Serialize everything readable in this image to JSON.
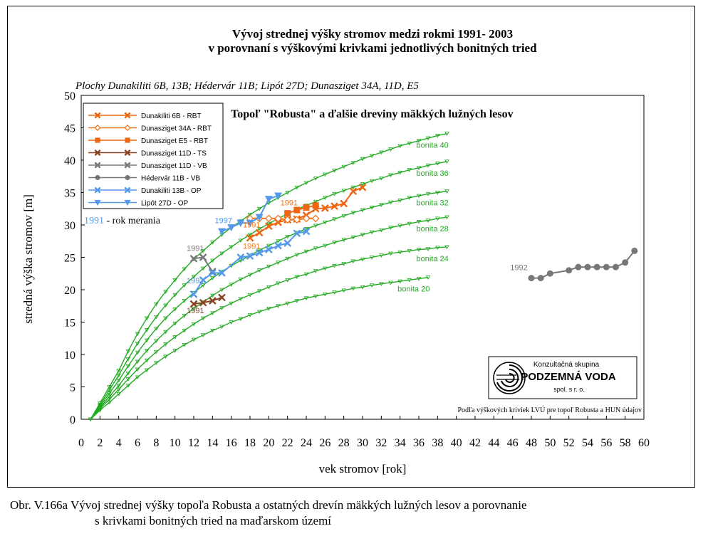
{
  "chart_data": {
    "type": "line",
    "title": "Vývoj strednej výšky stromov medzi rokmi 1991- 2003",
    "subtitle": "v porovnaní s výškovými krivkami jednotlivých bonitných tried",
    "plots_note": "Plochy Dunakiliti 6B, 13B; Hédervár 11B; Lipót 27D; Dunasziget 34A, 11D, E5",
    "panel_title": "Topoľ \"Robusta\" a ďalšie dreviny mäkkých lužných lesov",
    "xlabel": "vek stromov [rok]",
    "ylabel": "stredná výška stromov [m]",
    "xlim": [
      0,
      60
    ],
    "ylim": [
      0,
      50
    ],
    "x_ticks": [
      "0",
      "2",
      "4",
      "6",
      "8",
      "10",
      "12",
      "14",
      "16",
      "18",
      "20",
      "22",
      "24",
      "26",
      "28",
      "30",
      "32",
      "34",
      "36",
      "38",
      "40",
      "42",
      "44",
      "46",
      "48",
      "50",
      "52",
      "54",
      "56",
      "58",
      "60"
    ],
    "y_ticks": [
      "0",
      "5",
      "10",
      "15",
      "20",
      "25",
      "30",
      "35",
      "40",
      "45",
      "50"
    ],
    "grid": false,
    "legend_placement": "top-left",
    "bonita_curves": [
      {
        "label": "bonita 40",
        "color": "#22aa22",
        "x": [
          1,
          2,
          3,
          4,
          5,
          6,
          7,
          8,
          9,
          10,
          11,
          12,
          13,
          14,
          15,
          16,
          17,
          18,
          19,
          20,
          21,
          22,
          23,
          24,
          25,
          26,
          27,
          28,
          29,
          30,
          31,
          32,
          33,
          34,
          35,
          36,
          37,
          38,
          39
        ],
        "y": [
          0,
          2.5,
          5.0,
          7.5,
          10.5,
          13.2,
          15.6,
          17.8,
          19.7,
          21.5,
          23.2,
          24.7,
          26.0,
          27.3,
          28.5,
          29.6,
          30.6,
          31.6,
          32.5,
          33.4,
          34.2,
          35.0,
          35.8,
          36.5,
          37.2,
          37.8,
          38.4,
          39.0,
          39.6,
          40.2,
          40.7,
          41.2,
          41.7,
          42.2,
          42.6,
          43.0,
          43.4,
          43.8,
          44.1
        ]
      },
      {
        "label": "bonita 36",
        "color": "#22aa22",
        "x": [
          1,
          2,
          3,
          4,
          5,
          6,
          7,
          8,
          9,
          10,
          11,
          12,
          13,
          14,
          15,
          16,
          17,
          18,
          19,
          20,
          21,
          22,
          23,
          24,
          25,
          26,
          27,
          28,
          29,
          30,
          31,
          32,
          33,
          34,
          35,
          36,
          37,
          38,
          39
        ],
        "y": [
          0,
          2.2,
          4.5,
          6.8,
          9.3,
          11.7,
          13.8,
          15.8,
          17.6,
          19.2,
          20.7,
          22.0,
          23.3,
          24.5,
          25.6,
          26.6,
          27.6,
          28.5,
          29.4,
          30.2,
          31.0,
          31.7,
          32.4,
          33.0,
          33.6,
          34.2,
          34.8,
          35.3,
          35.8,
          36.3,
          36.8,
          37.2,
          37.7,
          38.1,
          38.5,
          38.8,
          39.2,
          39.5,
          39.8
        ]
      },
      {
        "label": "bonita 32",
        "color": "#22aa22",
        "x": [
          1,
          2,
          3,
          4,
          5,
          6,
          7,
          8,
          9,
          10,
          11,
          12,
          13,
          14,
          15,
          16,
          17,
          18,
          19,
          20,
          21,
          22,
          23,
          24,
          25,
          26,
          27,
          28,
          29,
          30,
          31,
          32,
          33,
          34,
          35,
          36,
          37,
          38,
          39
        ],
        "y": [
          0,
          2.0,
          4.0,
          6.0,
          8.2,
          10.3,
          12.2,
          14.0,
          15.6,
          17.0,
          18.3,
          19.5,
          20.7,
          21.8,
          22.8,
          23.7,
          24.5,
          25.3,
          26.1,
          26.8,
          27.5,
          28.2,
          28.8,
          29.4,
          29.9,
          30.4,
          30.9,
          31.4,
          31.9,
          32.3,
          32.7,
          33.1,
          33.5,
          33.8,
          34.2,
          34.5,
          34.8,
          35.0,
          35.2
        ]
      },
      {
        "label": "bonita 28",
        "color": "#22aa22",
        "x": [
          1,
          2,
          3,
          4,
          5,
          6,
          7,
          8,
          9,
          10,
          11,
          12,
          13,
          14,
          15,
          16,
          17,
          18,
          19,
          20,
          21,
          22,
          23,
          24,
          25,
          26,
          27,
          28,
          29,
          30,
          31,
          32,
          33,
          34,
          35,
          36,
          37,
          38,
          39
        ],
        "y": [
          0,
          1.8,
          3.5,
          5.2,
          7.1,
          8.9,
          10.6,
          12.1,
          13.5,
          14.8,
          16.0,
          17.1,
          18.1,
          19.1,
          20.0,
          20.8,
          21.6,
          22.3,
          23.0,
          23.6,
          24.2,
          24.8,
          25.4,
          25.9,
          26.4,
          26.8,
          27.3,
          27.7,
          28.1,
          28.5,
          28.9,
          29.2,
          29.6,
          29.9,
          30.2,
          30.5,
          30.7,
          31.0,
          31.2
        ]
      },
      {
        "label": "bonita 24",
        "color": "#22aa22",
        "x": [
          1,
          2,
          3,
          4,
          5,
          6,
          7,
          8,
          9,
          10,
          11,
          12,
          13,
          14,
          15,
          16,
          17,
          18,
          19,
          20,
          21,
          22,
          23,
          24,
          25,
          26,
          27,
          28,
          29,
          30,
          31,
          32,
          33,
          34,
          35,
          36,
          37,
          38,
          39
        ],
        "y": [
          0,
          1.6,
          3.1,
          4.6,
          6.2,
          7.7,
          9.1,
          10.4,
          11.6,
          12.7,
          13.7,
          14.7,
          15.6,
          16.4,
          17.2,
          17.9,
          18.6,
          19.2,
          19.8,
          20.4,
          21.0,
          21.5,
          22.0,
          22.4,
          22.9,
          23.3,
          23.7,
          24.0,
          24.4,
          24.7,
          25.0,
          25.3,
          25.6,
          25.8,
          26.0,
          26.2,
          26.3,
          26.5,
          26.6
        ]
      },
      {
        "label": "bonita 20",
        "color": "#22aa22",
        "x": [
          1,
          2,
          3,
          4,
          5,
          6,
          7,
          8,
          9,
          10,
          11,
          12,
          13,
          14,
          15,
          16,
          17,
          18,
          19,
          20,
          21,
          22,
          23,
          24,
          25,
          26,
          27,
          28,
          29,
          30,
          31,
          32,
          33,
          34,
          35,
          36,
          37
        ],
        "y": [
          0,
          1.4,
          2.6,
          3.9,
          5.2,
          6.5,
          7.6,
          8.7,
          9.7,
          10.6,
          11.5,
          12.3,
          13.0,
          13.7,
          14.3,
          15.0,
          15.5,
          16.1,
          16.6,
          17.1,
          17.5,
          17.9,
          18.3,
          18.7,
          19.0,
          19.3,
          19.6,
          19.9,
          20.2,
          20.4,
          20.7,
          20.9,
          21.1,
          21.3,
          21.5,
          21.7,
          21.9
        ]
      }
    ],
    "series": [
      {
        "name": "Dunakiliti 6B - RBT",
        "color": "#ee6611",
        "marker": "x",
        "x": [
          18,
          19,
          20,
          21,
          22,
          23,
          24,
          25,
          26,
          27,
          28,
          29,
          30
        ],
        "y": [
          28.0,
          28.8,
          29.8,
          30.4,
          30.8,
          30.9,
          31.5,
          32.5,
          32.6,
          32.9,
          33.3,
          35.2,
          35.8
        ]
      },
      {
        "name": "Dunasziget 34A - RBT",
        "color": "#ee7722",
        "marker": "diamond-open",
        "x": [
          18,
          19,
          20,
          21,
          22,
          23,
          24,
          25
        ],
        "y": [
          31.0,
          31.0,
          31.0,
          31.0,
          30.8,
          30.8,
          31.0,
          31.0
        ]
      },
      {
        "name": "Dunasziget E5 - RBT",
        "color": "#ee6611",
        "marker": "square",
        "x": [
          22,
          23,
          24,
          25
        ],
        "y": [
          31.8,
          32.3,
          32.7,
          33.0
        ]
      },
      {
        "name": "Dunasziget 11D - TS",
        "color": "#884422",
        "marker": "x",
        "x": [
          12,
          13,
          14,
          15
        ],
        "y": [
          17.8,
          18.0,
          18.3,
          18.8
        ]
      },
      {
        "name": "Dunasziget 11D - VB",
        "color": "#777777",
        "marker": "x",
        "x": [
          12,
          13,
          14
        ],
        "y": [
          24.8,
          25.0,
          22.8
        ]
      },
      {
        "name": "Hédervár 11B - VB",
        "color": "#777777",
        "marker": "circle",
        "x": [
          48,
          49,
          50,
          52,
          53,
          54,
          55,
          56,
          57,
          58,
          59
        ],
        "y": [
          21.8,
          21.8,
          22.5,
          23.0,
          23.5,
          23.5,
          23.5,
          23.5,
          23.5,
          24.2,
          26.0
        ]
      },
      {
        "name": "Dunakiliti 13B - OP",
        "color": "#5599ee",
        "marker": "x",
        "x": [
          12,
          13,
          14,
          15,
          17,
          18,
          19,
          20,
          21,
          22,
          23,
          24
        ],
        "y": [
          19.3,
          21.5,
          22.6,
          22.6,
          25.0,
          25.2,
          25.7,
          26.2,
          26.8,
          27.2,
          28.7,
          29.0
        ]
      },
      {
        "name": "Lipót 27D - OP",
        "color": "#5599ee",
        "marker": "triangle-down",
        "x": [
          15,
          16,
          17,
          18,
          19,
          20,
          21
        ],
        "y": [
          29.0,
          29.6,
          30.3,
          30.3,
          31.2,
          34.0,
          34.5
        ]
      }
    ],
    "year_annotations": [
      {
        "text": "1991",
        "x": 12,
        "y": 26,
        "color": "#777777"
      },
      {
        "text": "1991",
        "x": 12,
        "y": 21,
        "color": "#5599ee"
      },
      {
        "text": "1991",
        "x": 12,
        "y": 16.4,
        "color": "#884422"
      },
      {
        "text": "1997",
        "x": 15,
        "y": 30.3,
        "color": "#5599ee"
      },
      {
        "text": "1991",
        "x": 18,
        "y": 26.3,
        "color": "#ee7722"
      },
      {
        "text": "1991",
        "x": 18,
        "y": 29.6,
        "color": "#ee7722"
      },
      {
        "text": "1991",
        "x": 22,
        "y": 33.0,
        "color": "#ee7722"
      },
      {
        "text": "1992",
        "x": 46.5,
        "y": 23.0,
        "color": "#777777"
      }
    ],
    "legend_note_year": "1991",
    "legend_note_text": " - rok merania"
  },
  "logo": {
    "line1": "Konzultačná skupina",
    "line2": "PODZEMNÁ VODA",
    "line3": "spol. s r. o."
  },
  "source_note": "Podľa výškových kriviek LVÚ pre topoľ Robusta a HUN údajov",
  "caption": {
    "line1": "Obr. V.166a Vývoj strednej výšky topoľa Robusta a ostatných drevín mäkkých lužných lesov a porovnanie",
    "line2": "s krivkami bonitných tried na maďarskom území"
  }
}
